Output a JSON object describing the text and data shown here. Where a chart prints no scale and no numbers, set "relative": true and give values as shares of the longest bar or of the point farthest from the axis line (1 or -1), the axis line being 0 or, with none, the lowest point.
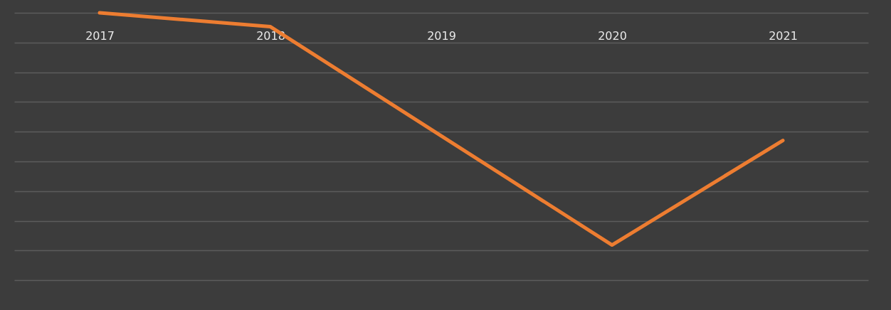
{
  "chart_data": {
    "type": "line",
    "relative": true,
    "categories": [
      "2017",
      "2018",
      "2019",
      "2020",
      "2021"
    ],
    "values": [
      0,
      -0.06,
      -0.53,
      -1,
      -0.55
    ],
    "color": "#ed7d31",
    "grid": true
  }
}
